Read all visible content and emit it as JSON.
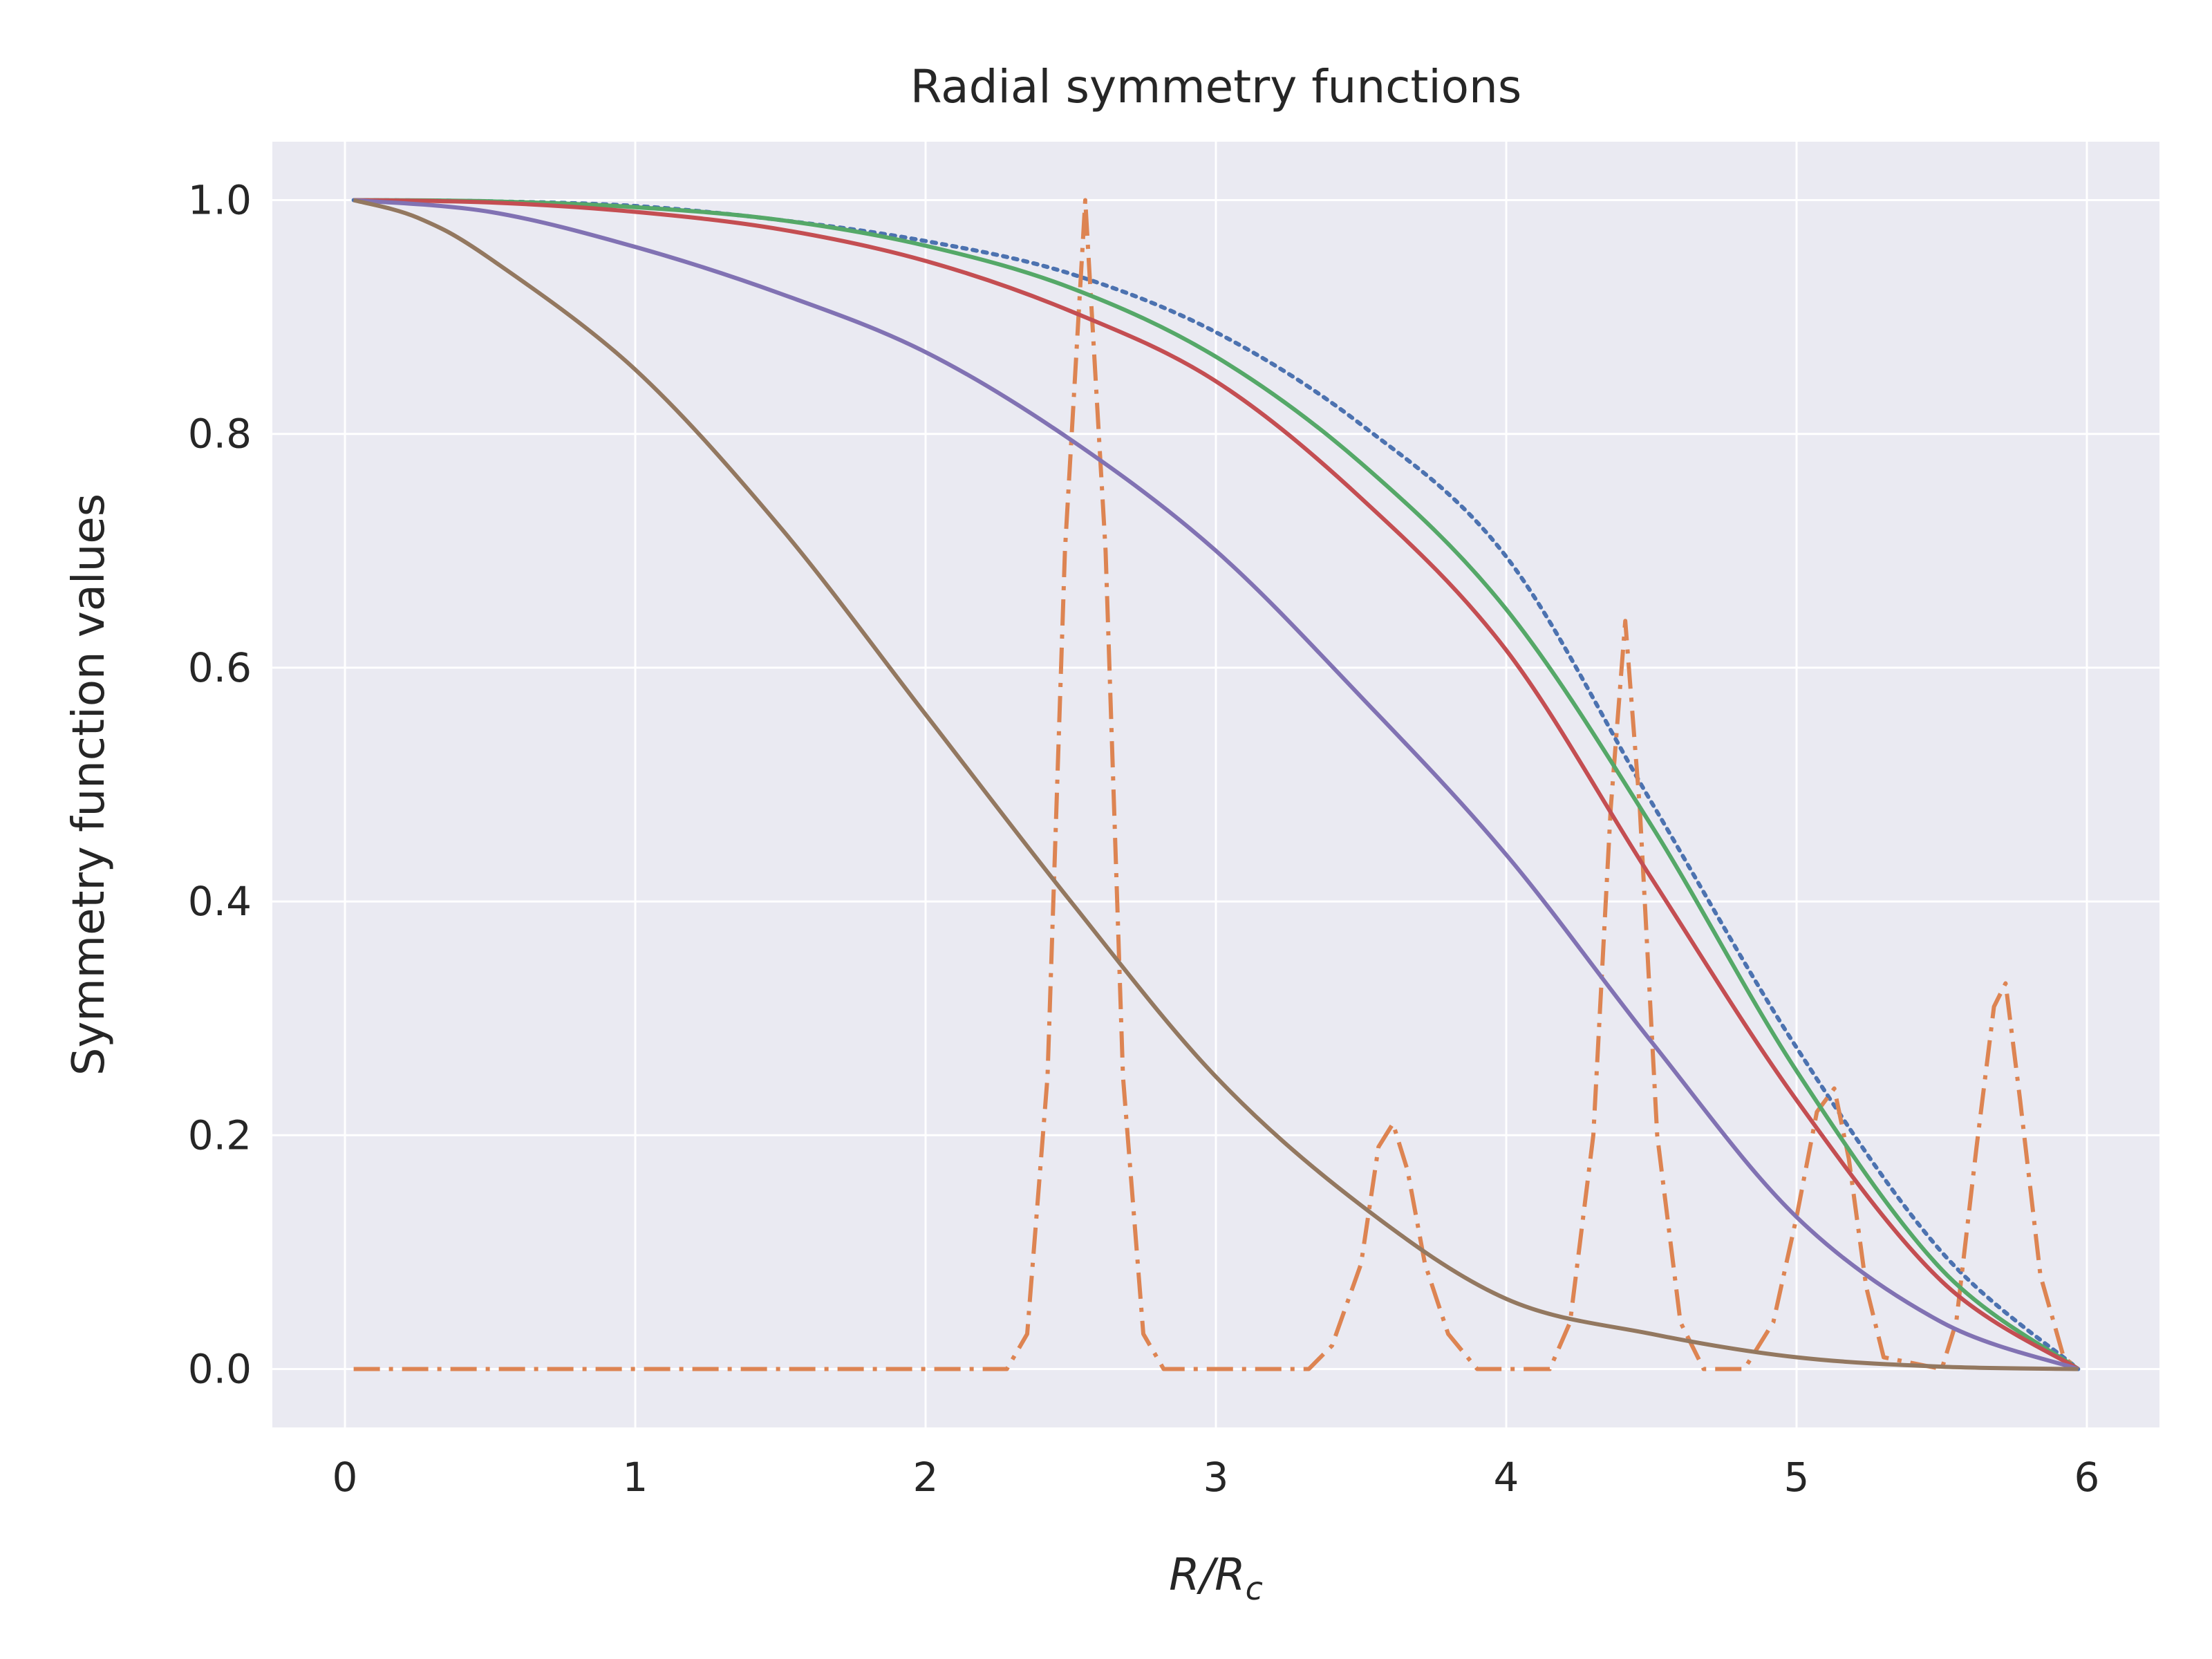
{
  "chart_data": {
    "type": "line",
    "title": "Radial symmetry functions",
    "xlabel_main": "R/R",
    "xlabel_sub": "c",
    "ylabel": "Symmetry function values",
    "xlim": [
      -0.25,
      6.25
    ],
    "ylim": [
      -0.05,
      1.05
    ],
    "grid": true,
    "xticks": [
      0,
      1,
      2,
      3,
      4,
      5,
      6
    ],
    "xtick_labels": [
      "0",
      "1",
      "2",
      "3",
      "4",
      "5",
      "6"
    ],
    "yticks": [
      0.0,
      0.2,
      0.4,
      0.6,
      0.8,
      1.0
    ],
    "ytick_labels": [
      "0.0",
      "0.2",
      "0.4",
      "0.6",
      "0.8",
      "1.0"
    ],
    "colors": {
      "background": "#eaeaf2",
      "grid": "#ffffff",
      "blue": "#4c72b0",
      "orange": "#dd8452",
      "green": "#55a868",
      "red": "#c44e52",
      "purple": "#8172b3",
      "brown": "#937860"
    },
    "series": [
      {
        "style": "dotted",
        "color_key": "blue",
        "points": [
          [
            0.03,
            1.0
          ],
          [
            0.5,
            0.999
          ],
          [
            1.0,
            0.995
          ],
          [
            1.5,
            0.983
          ],
          [
            2.0,
            0.965
          ],
          [
            2.5,
            0.937
          ],
          [
            3.0,
            0.887
          ],
          [
            3.5,
            0.808
          ],
          [
            4.0,
            0.695
          ],
          [
            4.5,
            0.485
          ],
          [
            5.0,
            0.275
          ],
          [
            5.5,
            0.1
          ],
          [
            5.97,
            0.0
          ]
        ]
      },
      {
        "style": "dashdot",
        "color_key": "orange",
        "points": [
          [
            0.03,
            0.0
          ],
          [
            2.28,
            0.0
          ],
          [
            2.35,
            0.03
          ],
          [
            2.42,
            0.25
          ],
          [
            2.48,
            0.7
          ],
          [
            2.55,
            1.0
          ],
          [
            2.62,
            0.7
          ],
          [
            2.68,
            0.25
          ],
          [
            2.75,
            0.03
          ],
          [
            2.82,
            0.0
          ],
          [
            3.32,
            0.0
          ],
          [
            3.4,
            0.02
          ],
          [
            3.5,
            0.09
          ],
          [
            3.56,
            0.19
          ],
          [
            3.61,
            0.21
          ],
          [
            3.66,
            0.17
          ],
          [
            3.72,
            0.09
          ],
          [
            3.8,
            0.03
          ],
          [
            3.9,
            0.0
          ],
          [
            4.15,
            0.0
          ],
          [
            4.22,
            0.04
          ],
          [
            4.3,
            0.2
          ],
          [
            4.36,
            0.48
          ],
          [
            4.41,
            0.64
          ],
          [
            4.46,
            0.48
          ],
          [
            4.52,
            0.2
          ],
          [
            4.6,
            0.04
          ],
          [
            4.68,
            0.0
          ],
          [
            4.82,
            0.0
          ],
          [
            4.92,
            0.04
          ],
          [
            5.0,
            0.13
          ],
          [
            5.07,
            0.22
          ],
          [
            5.13,
            0.24
          ],
          [
            5.18,
            0.18
          ],
          [
            5.24,
            0.07
          ],
          [
            5.3,
            0.01
          ],
          [
            5.5,
            0.0
          ],
          [
            5.55,
            0.04
          ],
          [
            5.62,
            0.19
          ],
          [
            5.68,
            0.31
          ],
          [
            5.72,
            0.33
          ],
          [
            5.77,
            0.23
          ],
          [
            5.84,
            0.08
          ],
          [
            5.92,
            0.01
          ],
          [
            5.97,
            0.0
          ]
        ]
      },
      {
        "style": "solid",
        "color_key": "green",
        "points": [
          [
            0.03,
            1.0
          ],
          [
            0.5,
            0.999
          ],
          [
            1.0,
            0.994
          ],
          [
            1.5,
            0.983
          ],
          [
            2.0,
            0.961
          ],
          [
            2.5,
            0.925
          ],
          [
            3.0,
            0.866
          ],
          [
            3.5,
            0.775
          ],
          [
            4.0,
            0.65
          ],
          [
            4.5,
            0.465
          ],
          [
            5.0,
            0.255
          ],
          [
            5.5,
            0.085
          ],
          [
            5.97,
            0.0
          ]
        ]
      },
      {
        "style": "solid",
        "color_key": "red",
        "points": [
          [
            0.03,
            1.0
          ],
          [
            0.5,
            0.998
          ],
          [
            1.0,
            0.99
          ],
          [
            1.5,
            0.975
          ],
          [
            2.0,
            0.948
          ],
          [
            2.5,
            0.905
          ],
          [
            3.0,
            0.845
          ],
          [
            3.5,
            0.745
          ],
          [
            4.0,
            0.615
          ],
          [
            4.5,
            0.42
          ],
          [
            5.0,
            0.23
          ],
          [
            5.5,
            0.075
          ],
          [
            5.97,
            0.0
          ]
        ]
      },
      {
        "style": "solid",
        "color_key": "purple",
        "points": [
          [
            0.03,
            1.0
          ],
          [
            0.5,
            0.99
          ],
          [
            1.0,
            0.96
          ],
          [
            1.5,
            0.92
          ],
          [
            2.0,
            0.87
          ],
          [
            2.5,
            0.795
          ],
          [
            3.0,
            0.7
          ],
          [
            3.5,
            0.575
          ],
          [
            4.0,
            0.44
          ],
          [
            4.5,
            0.28
          ],
          [
            5.0,
            0.13
          ],
          [
            5.5,
            0.04
          ],
          [
            5.97,
            0.0
          ]
        ]
      },
      {
        "style": "solid",
        "color_key": "brown",
        "points": [
          [
            0.03,
            1.0
          ],
          [
            0.25,
            0.985
          ],
          [
            0.5,
            0.95
          ],
          [
            1.0,
            0.855
          ],
          [
            1.5,
            0.72
          ],
          [
            2.0,
            0.56
          ],
          [
            2.5,
            0.4
          ],
          [
            3.0,
            0.25
          ],
          [
            3.5,
            0.14
          ],
          [
            4.0,
            0.06
          ],
          [
            4.5,
            0.03
          ],
          [
            5.0,
            0.01
          ],
          [
            5.5,
            0.002
          ],
          [
            5.97,
            0.0
          ]
        ]
      }
    ]
  }
}
